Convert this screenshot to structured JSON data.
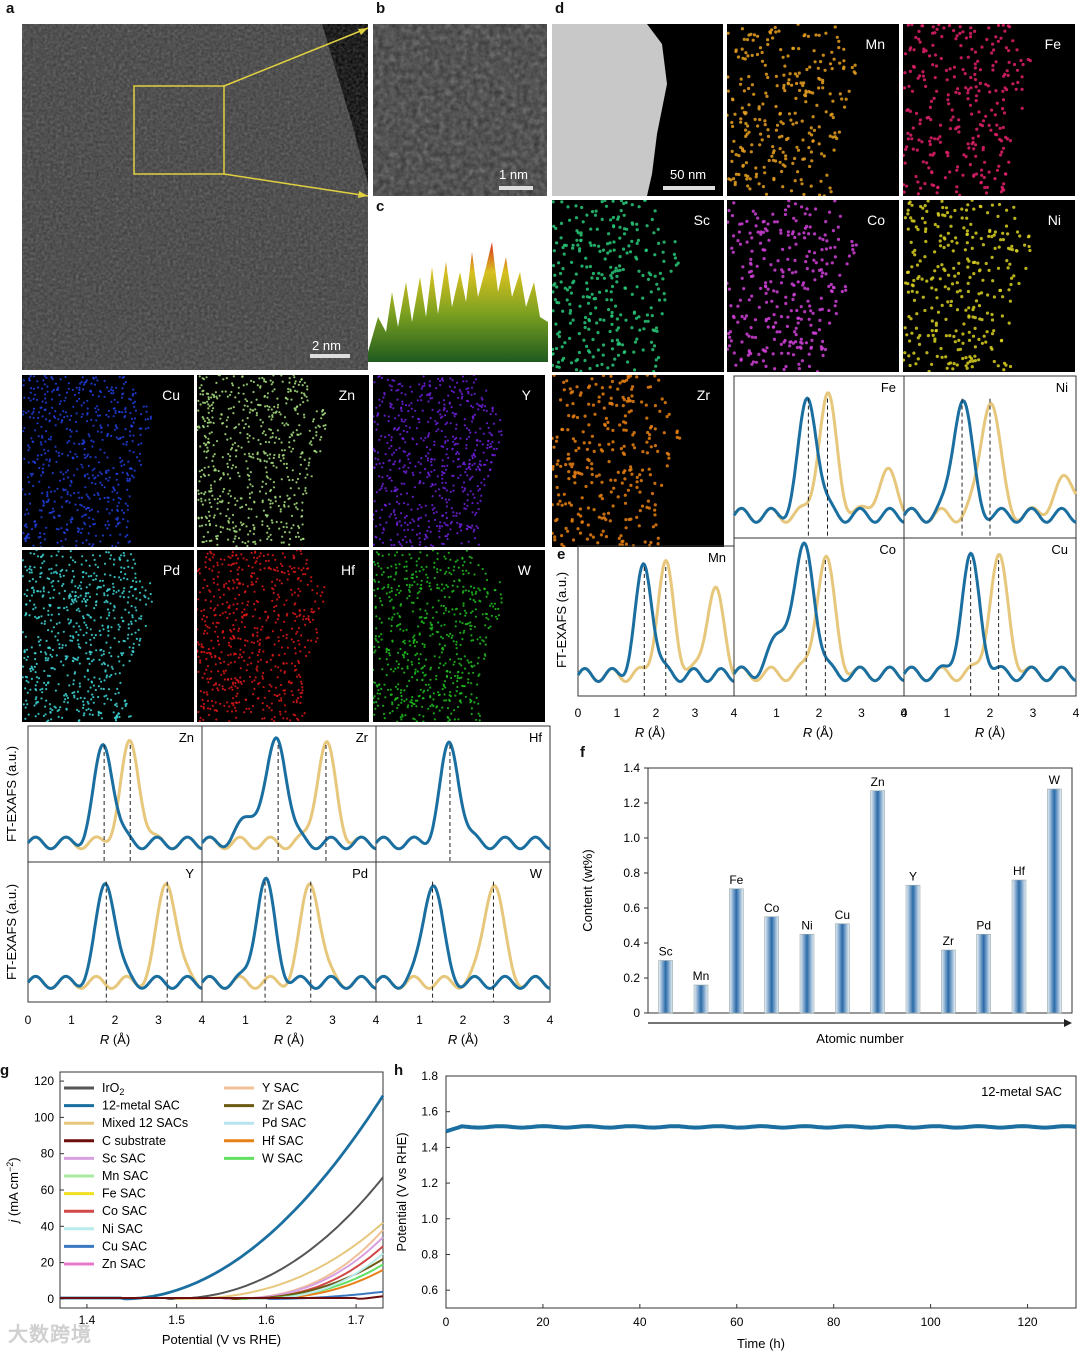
{
  "panels": {
    "a": "a",
    "b": "b",
    "c": "c",
    "d": "d",
    "e": "e",
    "f": "f",
    "g": "g",
    "h": "h"
  },
  "scalebars": {
    "a": "2 nm",
    "b": "1 nm",
    "d": "50 nm"
  },
  "maps": [
    {
      "id": "Mn",
      "label": "Mn",
      "color": "#e8a020"
    },
    {
      "id": "Fe",
      "label": "Fe",
      "color": "#e0206a"
    },
    {
      "id": "Sc",
      "label": "Sc",
      "color": "#28c878"
    },
    {
      "id": "Co",
      "label": "Co",
      "color": "#d040d8"
    },
    {
      "id": "Ni",
      "label": "Ni",
      "color": "#d8d020"
    },
    {
      "id": "Cu",
      "label": "Cu",
      "color": "#2040e0"
    },
    {
      "id": "Zn",
      "label": "Zn",
      "color": "#a8e080"
    },
    {
      "id": "Y",
      "label": "Y",
      "color": "#7020e0"
    },
    {
      "id": "Zr",
      "label": "Zr",
      "color": "#e88010"
    },
    {
      "id": "Pd",
      "label": "Pd",
      "color": "#40d8d8"
    },
    {
      "id": "Hf",
      "label": "Hf",
      "color": "#e01818"
    },
    {
      "id": "W",
      "label": "W",
      "color": "#20c020"
    }
  ],
  "exafs": {
    "ylabel": "FT-EXAFS (a.u.)",
    "xlabel_r": "R",
    "xlabel_unit": " (Å)",
    "ticks": [
      "0",
      "1",
      "2",
      "3",
      "4"
    ],
    "colors": {
      "sac": "#1a6fa0",
      "ref": "#e6c77c"
    }
  },
  "bar_chart": {
    "type": "bar",
    "ylabel": "Content (wt%)",
    "xlabel": "Atomic number",
    "yticks": [
      "0",
      "0.2",
      "0.4",
      "0.6",
      "0.8",
      "1.0",
      "1.2",
      "1.4"
    ],
    "ylim": [
      0,
      1.4
    ],
    "categories": [
      "Sc",
      "Mn",
      "Fe",
      "Co",
      "Ni",
      "Cu",
      "Zn",
      "Y",
      "Zr",
      "Pd",
      "Hf",
      "W"
    ],
    "values": [
      0.3,
      0.16,
      0.71,
      0.55,
      0.45,
      0.51,
      1.27,
      0.73,
      0.36,
      0.45,
      0.76,
      1.28
    ]
  },
  "lsv_chart": {
    "type": "line",
    "ylabel_j": "j",
    "ylabel_unit": " (mA cm",
    "ylabel_sup": "−2",
    "ylabel_close": ")",
    "xlabel": "Potential (V vs RHE)",
    "xticks": [
      "1.4",
      "1.5",
      "1.6",
      "1.7"
    ],
    "yticks": [
      "0",
      "20",
      "40",
      "60",
      "80",
      "100",
      "120"
    ],
    "xlim": [
      1.37,
      1.73
    ],
    "ylim": [
      -5,
      125
    ],
    "legend_left": [
      {
        "name": "IrO",
        "sub": "2",
        "color": "#555555"
      },
      {
        "name": "12-metal SAC",
        "color": "#1a6fa0"
      },
      {
        "name": "Mixed 12 SACs",
        "color": "#e6c77c"
      },
      {
        "name": "C substrate",
        "color": "#6b0d0d"
      },
      {
        "name": "Sc SAC",
        "color": "#d8a0e0"
      },
      {
        "name": "Mn SAC",
        "color": "#a8e8a0"
      },
      {
        "name": "Fe SAC",
        "color": "#f0e020"
      },
      {
        "name": "Co SAC",
        "color": "#d04848"
      },
      {
        "name": "Ni SAC",
        "color": "#b8ecec"
      },
      {
        "name": "Cu SAC",
        "color": "#3a78c0"
      },
      {
        "name": "Zn SAC",
        "color": "#e878c8"
      }
    ],
    "legend_right": [
      {
        "name": "Y SAC",
        "color": "#f0c098"
      },
      {
        "name": "Zr SAC",
        "color": "#6b5a10"
      },
      {
        "name": "Pd SAC",
        "color": "#b8e4f0"
      },
      {
        "name": "Hf SAC",
        "color": "#e88018"
      },
      {
        "name": "W SAC",
        "color": "#60e060"
      }
    ]
  },
  "stability_chart": {
    "type": "line",
    "ylabel": "Potential (V vs RHE)",
    "xlabel": "Time (h)",
    "annotation": "12-metal SAC",
    "xticks": [
      "0",
      "20",
      "40",
      "60",
      "80",
      "100",
      "120"
    ],
    "yticks": [
      "0.6",
      "0.8",
      "1.0",
      "1.2",
      "1.4",
      "1.6",
      "1.8"
    ],
    "xlim": [
      0,
      130
    ],
    "ylim": [
      0.5,
      1.8
    ],
    "series_value": 1.52,
    "color": "#1a6fa0"
  },
  "watermark": "大数跨境"
}
